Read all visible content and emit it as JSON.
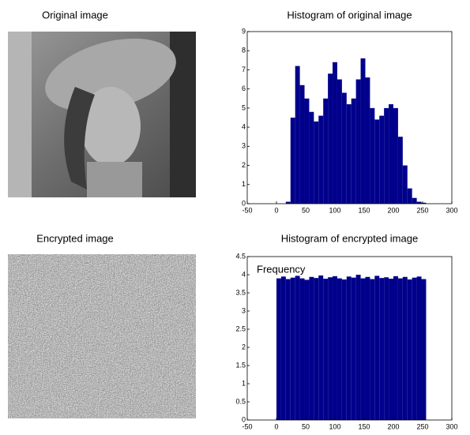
{
  "images": [
    {
      "title": "Original image"
    },
    {
      "title": "Encrypted image"
    }
  ],
  "chart_data": [
    {
      "type": "histogram",
      "title": "Histogram of original image",
      "color": "#00008b",
      "bins": [
        16,
        24,
        32,
        40,
        48,
        56,
        64,
        72,
        80,
        88,
        96,
        104,
        112,
        120,
        128,
        136,
        144,
        152,
        160,
        168,
        176,
        184,
        192,
        200,
        208,
        216,
        224,
        232,
        240,
        248,
        256
      ],
      "values": [
        0.1,
        4.5,
        7.2,
        6.2,
        5.5,
        4.8,
        4.3,
        4.6,
        5.5,
        6.8,
        7.4,
        6.5,
        5.8,
        5.2,
        5.5,
        6.5,
        7.6,
        6.6,
        5.0,
        4.4,
        4.6,
        5.0,
        5.2,
        5.0,
        3.5,
        2.0,
        0.8,
        0.3,
        0.1,
        0.05
      ],
      "xlim": [
        -50,
        300
      ],
      "xticks": [
        -50,
        0,
        50,
        100,
        150,
        200,
        250,
        300
      ],
      "ylim": [
        0,
        9
      ],
      "yticks": [
        0,
        1,
        2,
        3,
        4,
        5,
        6,
        7,
        8,
        9
      ]
    },
    {
      "type": "histogram",
      "title": "Histogram of encrypted image",
      "annotation": "Frequency",
      "color": "#00008b",
      "bins": [
        0,
        8,
        16,
        24,
        32,
        40,
        48,
        56,
        64,
        72,
        80,
        88,
        96,
        104,
        112,
        120,
        128,
        136,
        144,
        152,
        160,
        168,
        176,
        184,
        192,
        200,
        208,
        216,
        224,
        232,
        240,
        248,
        256
      ],
      "values": [
        3.9,
        3.95,
        3.88,
        3.92,
        3.97,
        3.9,
        3.86,
        3.94,
        3.91,
        3.98,
        3.89,
        3.93,
        3.96,
        3.9,
        3.87,
        3.95,
        3.92,
        4.0,
        3.9,
        3.94,
        3.88,
        3.97,
        3.91,
        3.93,
        3.89,
        3.96,
        3.9,
        3.94,
        3.87,
        3.92,
        3.95,
        3.88
      ],
      "xlim": [
        -50,
        300
      ],
      "xticks": [
        -50,
        0,
        50,
        100,
        150,
        200,
        250,
        300
      ],
      "ylim": [
        0,
        4.5
      ],
      "yticks": [
        0,
        0.5,
        1,
        1.5,
        2,
        2.5,
        3,
        3.5,
        4,
        4.5
      ]
    }
  ]
}
